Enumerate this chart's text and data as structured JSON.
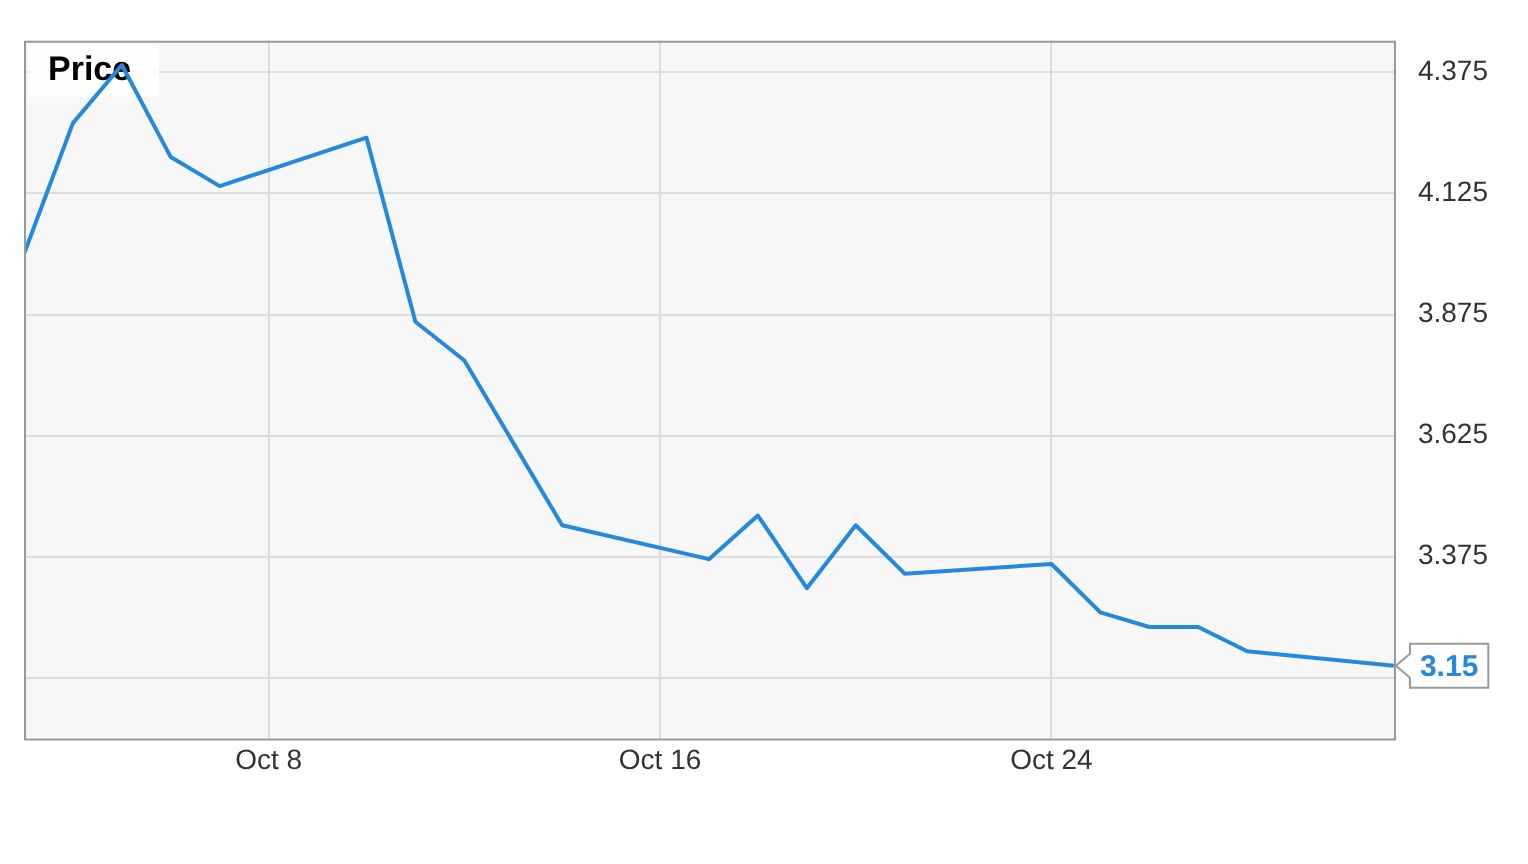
{
  "chart_data": {
    "type": "line",
    "title": "Price",
    "x": [
      "--10-03",
      "--10-04",
      "--10-05",
      "--10-06",
      "--10-07",
      "--10-10",
      "--10-11",
      "--10-12",
      "--10-13",
      "--10-14",
      "--10-17",
      "--10-18",
      "--10-19",
      "--10-20",
      "--10-21",
      "--10-24",
      "--10-25",
      "--10-26",
      "--10-27",
      "--10-28",
      "--10-31"
    ],
    "series": [
      {
        "color": "#2389e0",
        "values": [
          4.0,
          4.27,
          4.39,
          4.2,
          4.14,
          4.24,
          3.86,
          3.78,
          3.61,
          3.44,
          3.37,
          3.46,
          3.31,
          3.44,
          3.34,
          3.36,
          3.26,
          3.23,
          3.23,
          3.18,
          3.15
        ]
      }
    ],
    "xlim": [
      "--10-03",
      "--10-31"
    ],
    "xticks": [
      {
        "value": "--10-08",
        "label": "Oct 8"
      },
      {
        "value": "--10-16",
        "label": "Oct 16"
      },
      {
        "value": "--10-24",
        "label": "Oct 24"
      }
    ],
    "ylim": [
      3.0,
      4.44
    ],
    "yticks": [
      {
        "value": 3.125,
        "label": null
      },
      3.375,
      3.625,
      3.875,
      4.125,
      4.375
    ],
    "annotations": [
      {
        "text": "3.15",
        "x": "--10-31",
        "y": 3.15
      }
    ],
    "grid": true,
    "legend": false,
    "marker": "none",
    "line_style": "solid"
  }
}
